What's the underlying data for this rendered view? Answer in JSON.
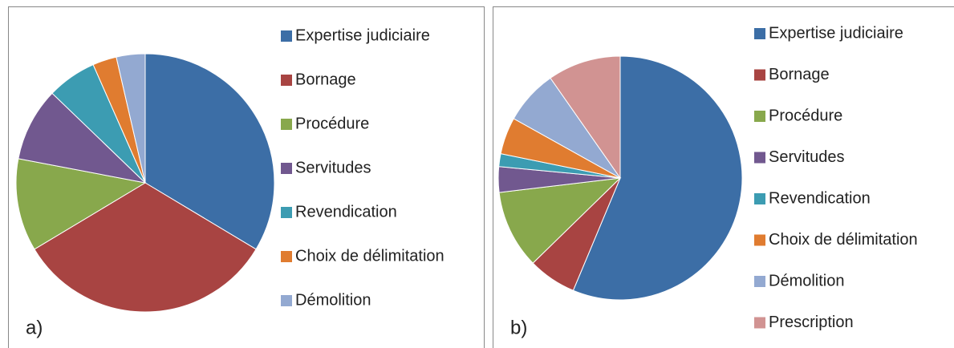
{
  "chart_data": [
    {
      "type": "pie",
      "annotation": "a)",
      "categories": [
        "Expertise judiciaire",
        "Bornage",
        "Procédure",
        "Servitudes",
        "Revendication",
        "Choix de délimitation",
        "Démolition"
      ],
      "values": [
        33.6,
        32.8,
        11.6,
        9.2,
        6.2,
        3.0,
        3.6
      ],
      "colors": [
        "#3c6ea6",
        "#a84442",
        "#88a84c",
        "#71588f",
        "#3c9cb2",
        "#e07c30",
        "#93a9d1"
      ]
    },
    {
      "type": "pie",
      "annotation": "b)",
      "categories": [
        "Expertise judiciaire",
        "Bornage",
        "Procédure",
        "Servitudes",
        "Revendication",
        "Choix de délimitation",
        "Démolition",
        "Prescription"
      ],
      "values": [
        56.3,
        6.4,
        10.4,
        3.4,
        1.7,
        4.9,
        7.2,
        9.7
      ],
      "colors": [
        "#3c6ea6",
        "#a84442",
        "#88a84c",
        "#71588f",
        "#3c9cb2",
        "#e07c30",
        "#93a9d1",
        "#d19392"
      ]
    }
  ]
}
